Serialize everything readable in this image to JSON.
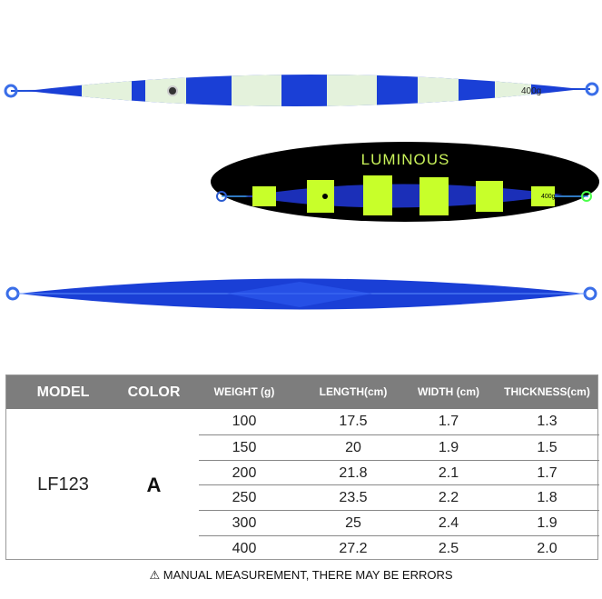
{
  "lure_top": {
    "weight_mark": "400g",
    "colors": {
      "blue": "#1a3fd6",
      "glow": "#e4f2dc"
    }
  },
  "luminous": {
    "label": "LUMINOUS",
    "weight_mark": "400g",
    "colors": {
      "glow": "#c8ff2a",
      "background": "#000000"
    }
  },
  "table": {
    "headers": [
      "MODEL",
      "COLOR",
      "WEIGHT (g)",
      "LENGTH(cm)",
      "WIDTH (cm)",
      "THICKNESS(cm)"
    ],
    "model": "LF123",
    "color": "A",
    "rows": [
      [
        "100",
        "17.5",
        "1.7",
        "1.3"
      ],
      [
        "150",
        "20",
        "1.9",
        "1.5"
      ],
      [
        "200",
        "21.8",
        "2.1",
        "1.7"
      ],
      [
        "250",
        "23.5",
        "2.2",
        "1.8"
      ],
      [
        "300",
        "25",
        "2.4",
        "1.9"
      ],
      [
        "400",
        "27.2",
        "2.5",
        "2.0"
      ]
    ]
  },
  "note": {
    "icon": "warning-triangle-icon",
    "text": "MANUAL MEASUREMENT, THERE MAY BE ERRORS"
  }
}
